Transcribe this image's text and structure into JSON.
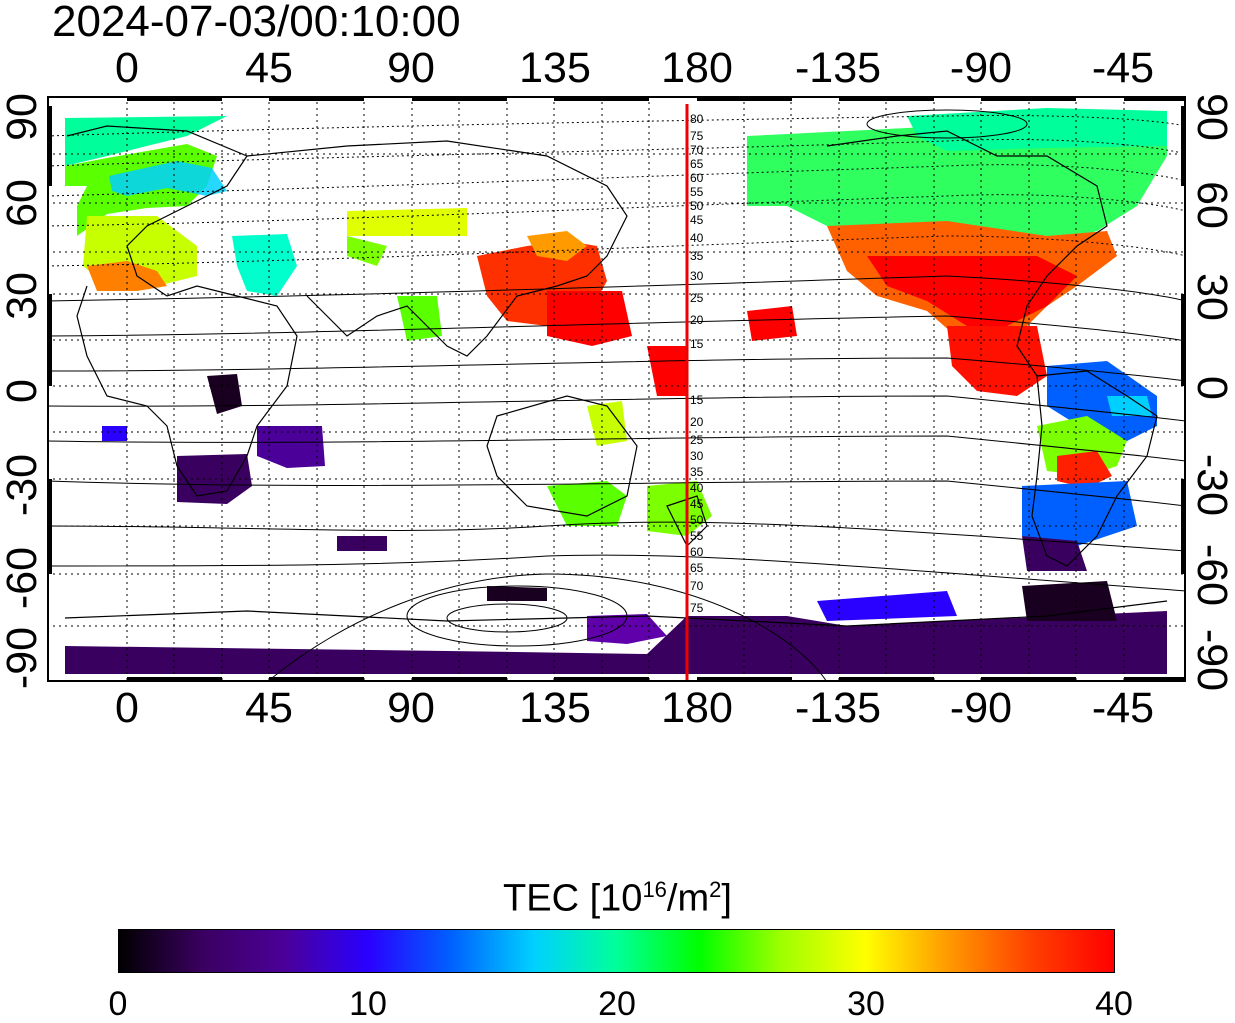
{
  "timestamp": "2024-07-03/00:10:00",
  "map": {
    "x_ticks": [
      "0",
      "45",
      "90",
      "135",
      "180",
      "-135",
      "-90",
      "-45"
    ],
    "y_ticks_left": [
      "90",
      "60",
      "30",
      "0",
      "-30",
      "-60",
      "-90"
    ],
    "y_ticks_right": [
      "90",
      "60",
      "30",
      "0",
      "-30",
      "-60",
      "-90"
    ],
    "terminator_color": "#ee0000",
    "terminator_labels_north": [
      "80",
      "75",
      "70",
      "65",
      "60",
      "55",
      "50",
      "45",
      "40",
      "35",
      "30",
      "25",
      "20",
      "15"
    ],
    "terminator_labels_south": [
      "15",
      "20",
      "25",
      "30",
      "35",
      "40",
      "45",
      "50",
      "55",
      "60",
      "65",
      "70",
      "75"
    ]
  },
  "colorbar": {
    "title_prefix": "TEC  [10",
    "title_sup1": "16",
    "title_mid": "/m",
    "title_sup2": "2",
    "title_suffix": "]",
    "ticks": [
      "0",
      "10",
      "20",
      "30",
      "40"
    ],
    "colors": [
      "#000000",
      "#3a0060",
      "#4b0099",
      "#2a00ff",
      "#0060ff",
      "#00d0ff",
      "#00ff9a",
      "#00ff00",
      "#a0ff00",
      "#ffff00",
      "#ff9a00",
      "#ff4000",
      "#ff0000"
    ]
  }
}
